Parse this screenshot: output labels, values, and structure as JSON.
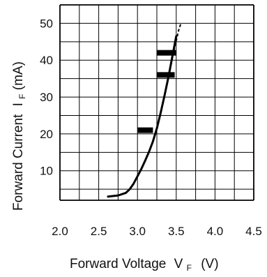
{
  "chart_data": {
    "type": "line",
    "xlabel": "Forward Voltage",
    "xlabel_symbol": "V",
    "xlabel_subscript": "F",
    "xlabel_unit": "(V)",
    "ylabel": "Forward Current",
    "ylabel_symbol": "I",
    "ylabel_subscript": "F",
    "ylabel_unit": "(mA)",
    "x_ticks": [
      "2.0",
      "2.5",
      "3.0",
      "3.5",
      "4.0",
      "4.5"
    ],
    "y_ticks": [
      "10",
      "20",
      "30",
      "40",
      "50"
    ],
    "xlim": [
      2.0,
      4.5
    ],
    "ylim": [
      2,
      55
    ],
    "grid": true,
    "grid_color": "#000000",
    "curve_color": "#000000",
    "series": [
      {
        "x": [
          2.62,
          2.75,
          2.85,
          2.9,
          2.95,
          3.0,
          3.05,
          3.1,
          3.15,
          3.2,
          3.25,
          3.3,
          3.35,
          3.4,
          3.45,
          3.5
        ],
        "y": [
          3.0,
          3.3,
          4.0,
          5.0,
          6.5,
          8.5,
          10.5,
          12.8,
          15.2,
          18.0,
          21.5,
          25.8,
          30.5,
          35.5,
          41.0,
          46.5
        ]
      }
    ],
    "dashed_extension": {
      "x": [
        3.38,
        3.43,
        3.48,
        3.53,
        3.56
      ],
      "y": [
        33.5,
        38.5,
        43.5,
        48.0,
        50.0
      ]
    },
    "markers": [
      {
        "x1": 3.0,
        "x2": 3.2,
        "y": 21.0
      },
      {
        "x1": 3.25,
        "x2": 3.48,
        "y": 36.0
      },
      {
        "x1": 3.25,
        "x2": 3.5,
        "y": 42.0
      }
    ]
  }
}
